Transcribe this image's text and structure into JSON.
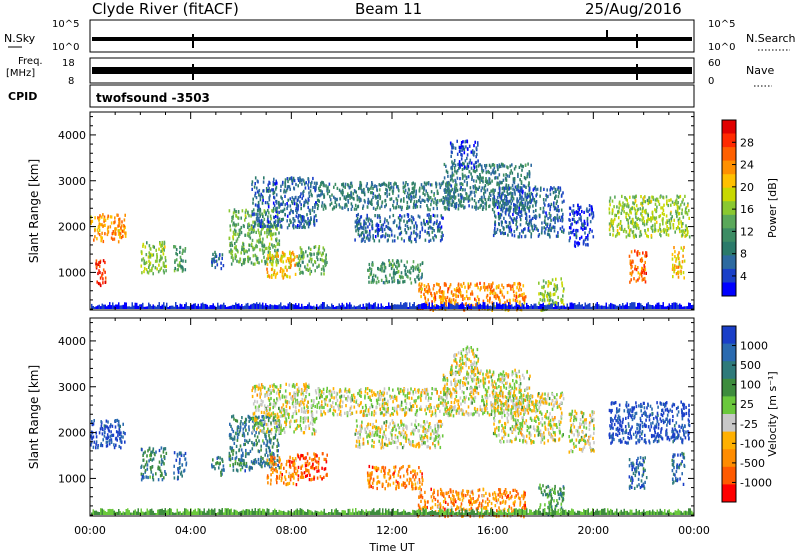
{
  "header": {
    "site": "Clyde River (fitACF)",
    "beam": "Beam 11",
    "date": "25/Aug/2016"
  },
  "noise_panel": {
    "left_label": "N.Sky",
    "right_label": "N.Search",
    "left_ticks": [
      "10^5",
      "10^0"
    ],
    "right_ticks": [
      "10^5",
      "10^0"
    ]
  },
  "freq_panel": {
    "left_label_top": "Freq.",
    "left_label_unit": "[MHz]",
    "right_label": "Nave",
    "left_ticks": [
      "18",
      "8"
    ],
    "right_ticks": [
      "60",
      "0"
    ]
  },
  "cpid": {
    "label": "CPID",
    "value": "twofsound -3503"
  },
  "chart_data": [
    {
      "type": "heatmap",
      "name": "power",
      "ylabel": "Slant Range [km]",
      "ylim": [
        180,
        4500
      ],
      "yticks": [
        1000,
        2000,
        3000,
        4000
      ],
      "xlim_hours": [
        0,
        24
      ],
      "colorbar": {
        "label": "Power [dB]",
        "ticks": [
          "28",
          "24",
          "20",
          "16",
          "12",
          "8",
          "4"
        ],
        "colors": [
          "#e00000",
          "#ff2a00",
          "#ff6000",
          "#ff9000",
          "#ffc000",
          "#c8d800",
          "#8ac830",
          "#5aa85a",
          "#3c8c64",
          "#2a7a6a",
          "#2d6aa0",
          "#1a40c8",
          "#0000ff"
        ]
      },
      "patches": [
        {
          "t0": 0.0,
          "t1": 1.4,
          "r0": 1700,
          "r1": 2300,
          "c": 3
        },
        {
          "t0": 0.2,
          "t1": 0.6,
          "r0": 700,
          "r1": 1300,
          "c": 1
        },
        {
          "t0": 2.0,
          "t1": 3.0,
          "r0": 1000,
          "r1": 1700,
          "c": 6
        },
        {
          "t0": 3.3,
          "t1": 3.8,
          "r0": 1000,
          "r1": 1600,
          "c": 8
        },
        {
          "t0": 4.8,
          "t1": 5.3,
          "r0": 1100,
          "r1": 1500,
          "c": 10
        },
        {
          "t0": 5.5,
          "t1": 7.5,
          "r0": 1200,
          "r1": 2400,
          "c": 7
        },
        {
          "t0": 6.4,
          "t1": 9.0,
          "r0": 2000,
          "r1": 3100,
          "c": 10
        },
        {
          "t0": 7.0,
          "t1": 8.2,
          "r0": 900,
          "r1": 1500,
          "c": 4
        },
        {
          "t0": 8.2,
          "t1": 9.4,
          "r0": 1000,
          "r1": 1600,
          "c": 7
        },
        {
          "t0": 9.0,
          "t1": 14.5,
          "r0": 2400,
          "r1": 3000,
          "c": 9
        },
        {
          "t0": 10.5,
          "t1": 14.0,
          "r0": 1700,
          "r1": 2300,
          "c": 10
        },
        {
          "t0": 11.0,
          "t1": 13.2,
          "r0": 800,
          "r1": 1300,
          "c": 8
        },
        {
          "t0": 13.0,
          "t1": 17.3,
          "r0": 200,
          "r1": 800,
          "c": 3
        },
        {
          "t0": 14.0,
          "t1": 17.5,
          "r0": 2400,
          "r1": 3400,
          "c": 9
        },
        {
          "t0": 14.3,
          "t1": 15.4,
          "r0": 3300,
          "r1": 3900,
          "c": 11
        },
        {
          "t0": 16.0,
          "t1": 18.8,
          "r0": 1800,
          "r1": 2900,
          "c": 10
        },
        {
          "t0": 17.8,
          "t1": 18.8,
          "r0": 200,
          "r1": 900,
          "c": 6
        },
        {
          "t0": 19.0,
          "t1": 20.0,
          "r0": 1600,
          "r1": 2500,
          "c": 11
        },
        {
          "t0": 20.6,
          "t1": 23.8,
          "r0": 1800,
          "r1": 2700,
          "c": 6
        },
        {
          "t0": 21.4,
          "t1": 22.1,
          "r0": 800,
          "r1": 1500,
          "c": 2
        },
        {
          "t0": 23.1,
          "t1": 23.6,
          "r0": 900,
          "r1": 1600,
          "c": 4
        }
      ]
    },
    {
      "type": "heatmap",
      "name": "velocity",
      "ylabel": "Slant Range [km]",
      "ylim": [
        180,
        4500
      ],
      "yticks": [
        1000,
        2000,
        3000,
        4000
      ],
      "xlim_hours": [
        0,
        24
      ],
      "xticks": [
        "00:00",
        "04:00",
        "08:00",
        "12:00",
        "16:00",
        "20:00",
        "00:00"
      ],
      "xlabel": "Time UT",
      "colorbar": {
        "label": "Velocity [m s⁻¹]",
        "ticks": [
          "1000",
          "500",
          "100",
          "25",
          "-25",
          "-100",
          "-500",
          "-1000"
        ],
        "colors": [
          "#1a3fc8",
          "#2a6ab0",
          "#2e7a7a",
          "#3d8c3d",
          "#6ac83c",
          "#c8c8c8",
          "#ffb000",
          "#ff8c00",
          "#ff5a00",
          "#ff0000"
        ]
      },
      "patches": [
        {
          "t0": 0.0,
          "t1": 1.4,
          "r0": 1700,
          "r1": 2300,
          "c": 0
        },
        {
          "t0": 2.0,
          "t1": 3.0,
          "r0": 1000,
          "r1": 1700,
          "c": 2
        },
        {
          "t0": 3.3,
          "t1": 3.8,
          "r0": 1000,
          "r1": 1600,
          "c": 1
        },
        {
          "t0": 4.8,
          "t1": 5.3,
          "r0": 1100,
          "r1": 1500,
          "c": 2
        },
        {
          "t0": 5.5,
          "t1": 7.5,
          "r0": 1200,
          "r1": 2400,
          "c": 2
        },
        {
          "t0": 6.4,
          "t1": 9.0,
          "r0": 2000,
          "r1": 3100,
          "c": 5
        },
        {
          "t0": 7.0,
          "t1": 8.2,
          "r0": 900,
          "r1": 1500,
          "c": 7
        },
        {
          "t0": 8.2,
          "t1": 9.4,
          "r0": 1000,
          "r1": 1600,
          "c": 8
        },
        {
          "t0": 9.0,
          "t1": 14.5,
          "r0": 2400,
          "r1": 3000,
          "c": 5
        },
        {
          "t0": 10.5,
          "t1": 14.0,
          "r0": 1700,
          "r1": 2300,
          "c": 5
        },
        {
          "t0": 11.0,
          "t1": 13.2,
          "r0": 800,
          "r1": 1300,
          "c": 7
        },
        {
          "t0": 13.0,
          "t1": 17.3,
          "r0": 200,
          "r1": 800,
          "c": 7
        },
        {
          "t0": 14.0,
          "t1": 17.5,
          "r0": 2400,
          "r1": 3400,
          "c": 5
        },
        {
          "t0": 14.3,
          "t1": 15.4,
          "r0": 3300,
          "r1": 3900,
          "c": 5
        },
        {
          "t0": 16.0,
          "t1": 18.8,
          "r0": 1800,
          "r1": 2900,
          "c": 5
        },
        {
          "t0": 17.8,
          "t1": 18.8,
          "r0": 200,
          "r1": 900,
          "c": 3
        },
        {
          "t0": 19.0,
          "t1": 20.0,
          "r0": 1600,
          "r1": 2500,
          "c": 5
        },
        {
          "t0": 20.6,
          "t1": 23.8,
          "r0": 1800,
          "r1": 2700,
          "c": 0
        },
        {
          "t0": 21.4,
          "t1": 22.1,
          "r0": 800,
          "r1": 1500,
          "c": 1
        },
        {
          "t0": 23.1,
          "t1": 23.6,
          "r0": 900,
          "r1": 1600,
          "c": 1
        }
      ]
    }
  ]
}
